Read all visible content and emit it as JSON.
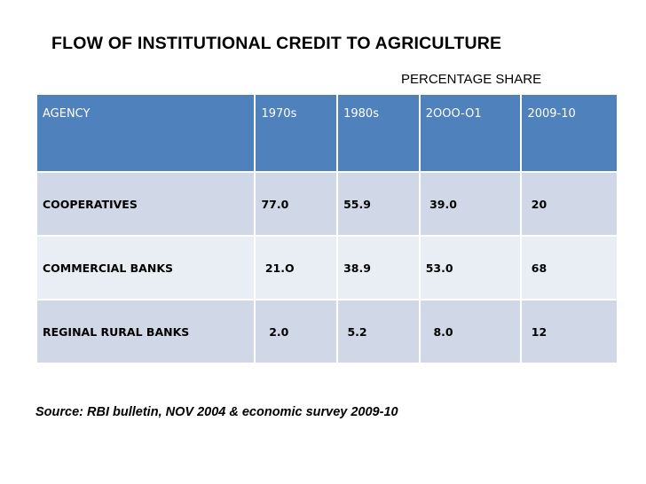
{
  "title": "FLOW OF INSTITUTIONAL CREDIT TO AGRICULTURE",
  "subtitle": "PERCENTAGE SHARE",
  "table": {
    "headers": [
      "AGENCY",
      "1970s",
      "1980s",
      "2OOO-O1",
      "2009-10"
    ],
    "rows": [
      [
        "COOPERATIVES",
        "77.0",
        "55.9",
        " 39.0",
        " 20"
      ],
      [
        "COMMERCIAL BANKS",
        " 21.O",
        "38.9",
        "53.0",
        " 68"
      ],
      [
        "REGINAL RURAL BANKS",
        "  2.0",
        " 5.2",
        "  8.0",
        " 12"
      ]
    ]
  },
  "source": "Source: RBI bulletin, NOV 2004 & economic survey 2009-10",
  "colors": {
    "header_bg": "#4f81bd",
    "row_odd_bg": "#d0d8e8",
    "row_even_bg": "#e9edf4"
  }
}
